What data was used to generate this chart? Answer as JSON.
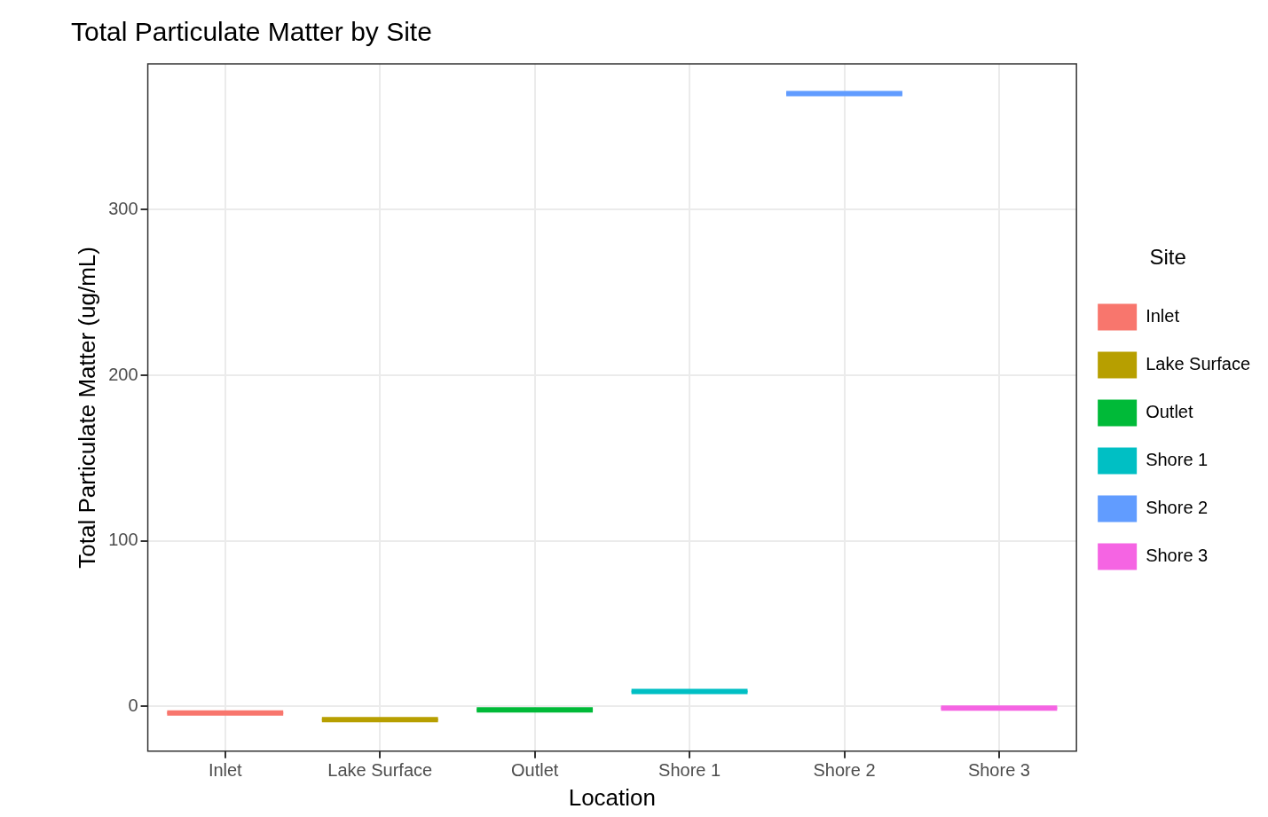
{
  "chart_data": {
    "type": "box",
    "title": "Total Particulate Matter by Site",
    "xlabel": "Location",
    "ylabel": "Total Particulate Matter (ug/mL)",
    "legend_title": "Site",
    "categories": [
      "Inlet",
      "Lake Surface",
      "Outlet",
      "Shore 1",
      "Shore 2",
      "Shore 3"
    ],
    "series": [
      {
        "name": "Inlet",
        "color": "#f8766d",
        "boxes": [
          {
            "low": -4,
            "q1": -4,
            "median": -4,
            "q3": -4,
            "high": -4
          },
          null,
          null,
          null,
          null,
          null
        ]
      },
      {
        "name": "Lake Surface",
        "color": "#b79f00",
        "boxes": [
          null,
          {
            "low": -8,
            "q1": -8,
            "median": -8,
            "q3": -8,
            "high": -8
          },
          null,
          null,
          null,
          null
        ]
      },
      {
        "name": "Outlet",
        "color": "#00ba38",
        "boxes": [
          null,
          null,
          {
            "low": -2,
            "q1": -2,
            "median": -2,
            "q3": -2,
            "high": -2
          },
          null,
          null,
          null
        ]
      },
      {
        "name": "Shore 1",
        "color": "#00bfc4",
        "boxes": [
          null,
          null,
          null,
          {
            "low": 9,
            "q1": 9,
            "median": 9,
            "q3": 9,
            "high": 9
          },
          null,
          null
        ]
      },
      {
        "name": "Shore 2",
        "color": "#619cff",
        "boxes": [
          null,
          null,
          null,
          null,
          {
            "low": 370,
            "q1": 370,
            "median": 370,
            "q3": 370,
            "high": 370
          },
          null
        ]
      },
      {
        "name": "Shore 3",
        "color": "#f564e3",
        "boxes": [
          null,
          null,
          null,
          null,
          null,
          {
            "low": -1,
            "q1": -1,
            "median": -1,
            "q3": -1,
            "high": -1
          }
        ]
      }
    ],
    "ylim": [
      -27,
      388
    ],
    "yticks": [
      0,
      100,
      200,
      300
    ],
    "grid": true,
    "legend": "right"
  }
}
